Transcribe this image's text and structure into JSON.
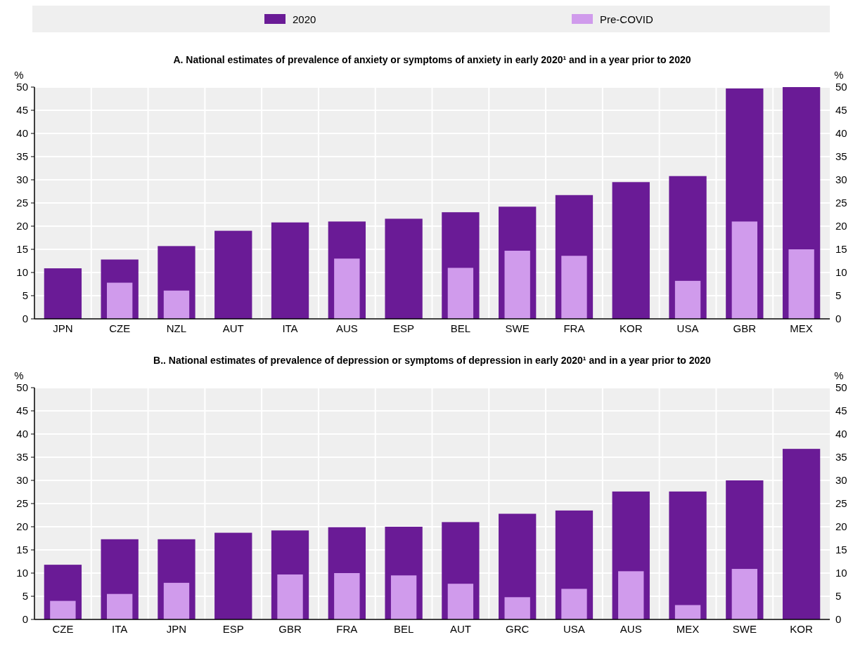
{
  "chart_data": [
    {
      "type": "bar",
      "title": "A. National estimates of prevalence of anxiety or symptoms of anxiety in early 2020¹ and in a year prior to 2020",
      "ylabel": "%",
      "y2label": "%",
      "categories": [
        "JPN",
        "CZE",
        "NZL",
        "AUT",
        "ITA",
        "AUS",
        "ESP",
        "BEL",
        "SWE",
        "FRA",
        "KOR",
        "USA",
        "GBR",
        "MEX"
      ],
      "series": [
        {
          "name": "2020",
          "color": "#6a1b96",
          "values": [
            10.9,
            12.8,
            15.7,
            19,
            20.8,
            21,
            21.6,
            23,
            24.2,
            26.7,
            29.5,
            30.8,
            49.7,
            50
          ]
        },
        {
          "name": "Pre-COVID",
          "color": "#d09bec",
          "values": [
            null,
            7.8,
            6.1,
            null,
            null,
            13,
            null,
            11,
            14.7,
            13.6,
            null,
            8.2,
            21,
            15
          ]
        }
      ],
      "ylim": [
        0,
        50
      ],
      "yticks": [
        0,
        5,
        10,
        15,
        20,
        25,
        30,
        35,
        40,
        45,
        50
      ],
      "y2lim": [
        0,
        50
      ],
      "y2ticks": [
        0,
        5,
        10,
        15,
        20,
        25,
        30,
        35,
        40,
        45,
        50
      ],
      "grid": true,
      "legend": "top"
    },
    {
      "type": "bar",
      "title": "B.. National estimates of prevalence of depression or symptoms of depression in early 2020¹ and in a year prior to 2020",
      "ylabel": "%",
      "y2label": "%",
      "categories": [
        "CZE",
        "ITA",
        "JPN",
        "ESP",
        "GBR",
        "FRA",
        "BEL",
        "AUT",
        "GRC",
        "USA",
        "AUS",
        "MEX",
        "SWE",
        "KOR"
      ],
      "series": [
        {
          "color": "#6a1b96",
          "values": [
            11.8,
            17.3,
            17.3,
            18.7,
            19.2,
            19.9,
            20,
            21,
            22.8,
            23.5,
            27.6,
            27.6,
            30,
            36.8
          ]
        },
        {
          "color": "#d09bec",
          "values": [
            4,
            5.5,
            7.9,
            null,
            9.7,
            10,
            9.5,
            7.7,
            4.8,
            6.6,
            10.4,
            3.1,
            10.9,
            null
          ]
        }
      ],
      "ylim": [
        0,
        50
      ],
      "yticks": [
        0,
        5,
        10,
        15,
        20,
        25,
        30,
        35,
        40,
        45,
        50
      ],
      "y2lim": [
        0,
        50
      ],
      "y2ticks": [
        0,
        5,
        10,
        15,
        20,
        25,
        30,
        35,
        40,
        45,
        50
      ],
      "grid": true
    }
  ]
}
